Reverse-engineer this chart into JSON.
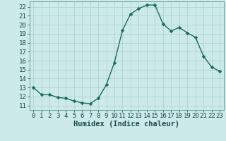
{
  "x": [
    0,
    1,
    2,
    3,
    4,
    5,
    6,
    7,
    8,
    9,
    10,
    11,
    12,
    13,
    14,
    15,
    16,
    17,
    18,
    19,
    20,
    21,
    22,
    23
  ],
  "y": [
    13.0,
    12.2,
    12.2,
    11.9,
    11.8,
    11.5,
    11.3,
    11.2,
    11.8,
    13.3,
    15.8,
    19.4,
    21.2,
    21.8,
    22.2,
    22.2,
    20.1,
    19.3,
    19.7,
    19.1,
    18.6,
    16.5,
    15.3,
    14.8
  ],
  "line_color": "#1a6b5a",
  "marker": "D",
  "marker_size": 2.5,
  "bg_color": "#cceaea",
  "grid_color": "#aacece",
  "xlabel": "Humidex (Indice chaleur)",
  "ylim": [
    10.5,
    22.6
  ],
  "xlim": [
    -0.5,
    23.5
  ],
  "yticks": [
    11,
    12,
    13,
    14,
    15,
    16,
    17,
    18,
    19,
    20,
    21,
    22
  ],
  "xticks": [
    0,
    1,
    2,
    3,
    4,
    5,
    6,
    7,
    8,
    9,
    10,
    11,
    12,
    13,
    14,
    15,
    16,
    17,
    18,
    19,
    20,
    21,
    22,
    23
  ],
  "xlabel_fontsize": 7.5,
  "tick_fontsize": 6.5,
  "line_width": 1.0
}
